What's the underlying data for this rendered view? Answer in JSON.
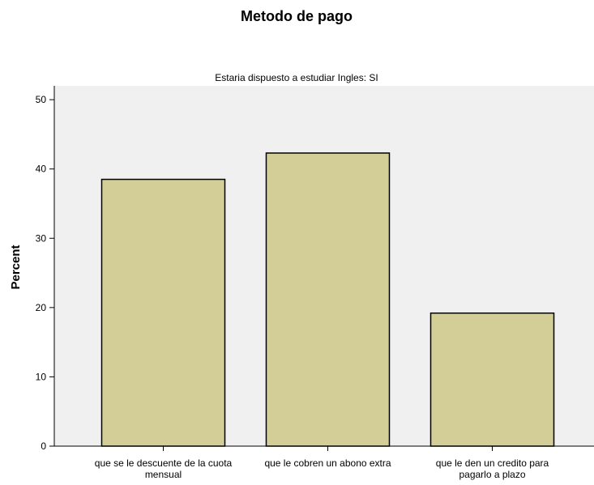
{
  "chart_data": {
    "type": "bar",
    "title": "Metodo de pago",
    "subtitle": "Estaria dispuesto a estudiar Ingles: SI",
    "xlabel": "",
    "ylabel": "Percent",
    "ylim": [
      0,
      52
    ],
    "yticks": [
      0,
      10,
      20,
      30,
      40,
      50
    ],
    "grid": false,
    "legend": "none",
    "categories": [
      [
        "que se le descuente de la cuota",
        "mensual"
      ],
      [
        "que le cobren un abono extra"
      ],
      [
        "que le den un credito para",
        "pagarlo a plazo"
      ]
    ],
    "values": [
      38.5,
      42.3,
      19.2
    ]
  },
  "colors": {
    "bar_fill": "#d3ce97",
    "plot_background": "#f0f0f0",
    "axis": "#000000"
  }
}
